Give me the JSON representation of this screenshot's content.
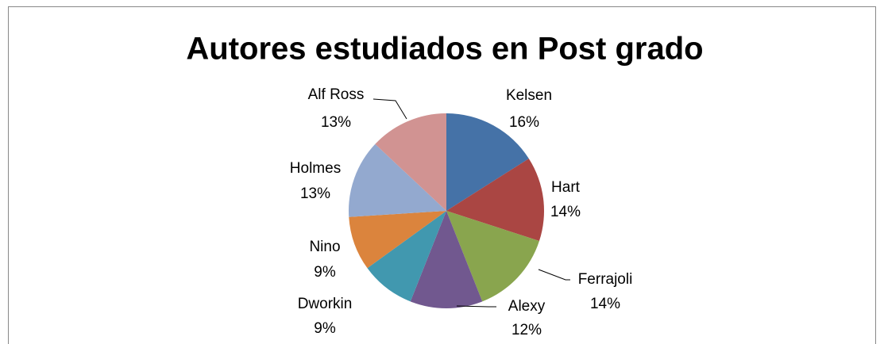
{
  "chart_data": {
    "type": "pie",
    "title": "Autores estudiados en Post grado",
    "categories": [
      "Kelsen",
      "Hart",
      "Ferrajoli",
      "Alexy",
      "Dworkin",
      "Nino",
      "Holmes",
      "Alf Ross"
    ],
    "values": [
      16,
      14,
      14,
      12,
      9,
      9,
      13,
      13
    ],
    "value_labels": [
      "16%",
      "14%",
      "14%",
      "12%",
      "9%",
      "9%",
      "13%",
      "13%"
    ],
    "colors": [
      "#4572a7",
      "#aa4643",
      "#89a54e",
      "#71588f",
      "#4198af",
      "#db843d",
      "#93a9cf",
      "#d19392"
    ]
  }
}
